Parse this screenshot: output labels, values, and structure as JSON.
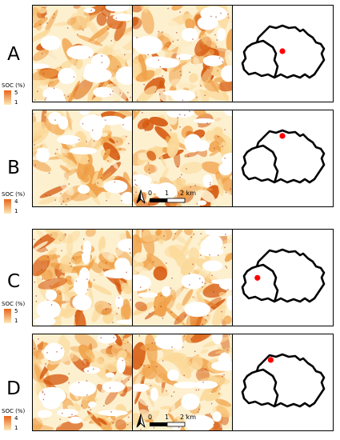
{
  "rows": [
    {
      "letter": "A",
      "legend": {
        "title": "SOC (%)",
        "max": "5",
        "min": "1"
      },
      "marker": [
        0.5,
        0.5
      ],
      "scalebar": false,
      "seed": 3
    },
    {
      "letter": "B",
      "legend": {
        "title": "SOC (%)",
        "max": "4",
        "min": "1"
      },
      "marker": [
        0.5,
        0.12
      ],
      "scalebar": true,
      "seed": 11
    },
    {
      "letter": "C",
      "legend": {
        "title": "SOC (%)",
        "max": "5",
        "min": "1"
      },
      "marker": [
        0.2,
        0.55
      ],
      "scalebar": false,
      "seed": 23
    },
    {
      "letter": "D",
      "legend": {
        "title": "SOC (%)",
        "max": "4",
        "min": "1"
      },
      "marker": [
        0.36,
        0.12
      ],
      "scalebar": true,
      "seed": 37
    }
  ],
  "scalebar": {
    "zero": "0",
    "one": "1",
    "two": "2 km"
  },
  "colors": {
    "dark": "#d65a10",
    "mid": "#f0a24a",
    "light": "#fbd99a",
    "pale": "#fdf0cf",
    "marker": "#ff0000"
  }
}
